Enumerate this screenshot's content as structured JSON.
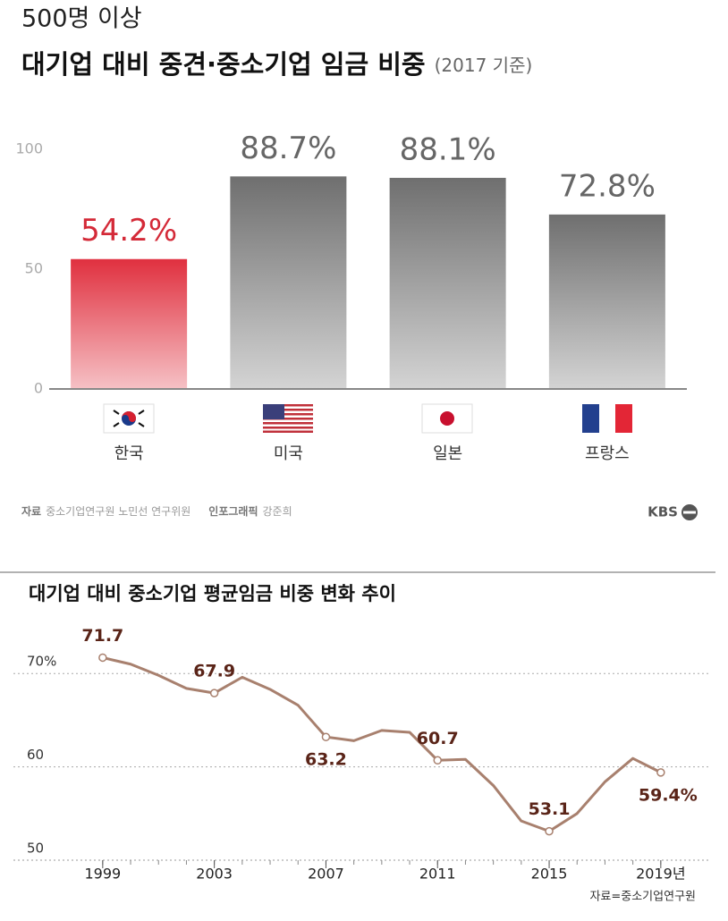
{
  "chart_data": [
    {
      "type": "bar",
      "title": "대기업 대비 중견·중소기업 임금 비중",
      "supertitle": "500명 이상",
      "subtitle": "(2017 기준)",
      "categories": [
        "한국",
        "미국",
        "일본",
        "프랑스"
      ],
      "values": [
        54.2,
        88.7,
        88.1,
        72.8
      ],
      "value_labels": [
        "54.2%",
        "88.7%",
        "88.1%",
        "72.8%"
      ],
      "colors": [
        "#e0303f",
        "#6f6f6f",
        "#6f6f6f",
        "#6f6f6f"
      ],
      "label_colors": [
        "#d42a38",
        "#666666",
        "#666666",
        "#666666"
      ],
      "ylim": [
        0,
        100
      ],
      "yticks": [
        0,
        50,
        100
      ],
      "source_label": "자료",
      "source": "중소기업연구원 노민선 연구위원",
      "credit_label": "인포그래픽",
      "credit": "강준희",
      "logo": "KBS"
    },
    {
      "type": "line",
      "title": "대기업 대비 중소기업 평균임금 비중 변화 추이",
      "x": [
        1999,
        2000,
        2001,
        2002,
        2003,
        2004,
        2005,
        2006,
        2007,
        2008,
        2009,
        2010,
        2011,
        2012,
        2013,
        2014,
        2015,
        2016,
        2017,
        2018,
        2019
      ],
      "values": [
        71.7,
        71.0,
        69.8,
        68.4,
        67.9,
        69.6,
        68.3,
        66.6,
        63.2,
        62.8,
        63.9,
        63.7,
        60.7,
        60.8,
        58.0,
        54.2,
        53.1,
        55.0,
        58.4,
        60.9,
        59.4
      ],
      "value_labels": [
        "71.7",
        null,
        null,
        null,
        "67.9",
        null,
        null,
        null,
        "63.2",
        null,
        null,
        null,
        "60.7",
        null,
        null,
        null,
        "53.1",
        null,
        null,
        null,
        "59.4%"
      ],
      "color": "#a8806e",
      "label_color": "#5a2418",
      "xlim": [
        1995.8,
        2020.8
      ],
      "xticks": [
        1999,
        2003,
        2007,
        2011,
        2015,
        {
          "value": 2019,
          "label": "2019년"
        }
      ],
      "ylim": [
        50,
        75
      ],
      "yticks": [
        50,
        60,
        {
          "value": 70,
          "label": "70%"
        }
      ],
      "grid": true,
      "source": "자료=중소기업연구원"
    }
  ]
}
